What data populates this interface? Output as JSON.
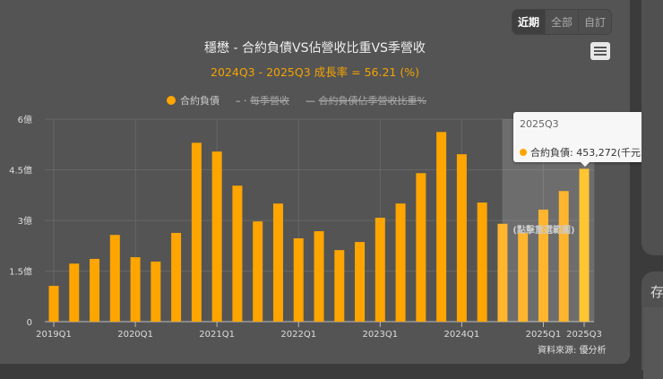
{
  "range_buttons": [
    "近期",
    "全部",
    "自訂"
  ],
  "chart_data": {
    "type": "bar",
    "title": "穩懋 - 合約負債VS佔營收比重VS季營收",
    "subtitle": "2024Q3 - 2025Q3 成長率 = 56.21 (%)",
    "legend": [
      {
        "name": "合約負債",
        "active": true
      },
      {
        "name": "每季營收",
        "active": false
      },
      {
        "name": "合約負債佔季營收比重%",
        "active": false
      }
    ],
    "legend_placement": "top",
    "categories": [
      "2019Q1",
      "2019Q2",
      "2019Q3",
      "2019Q4",
      "2020Q1",
      "2020Q2",
      "2020Q3",
      "2020Q4",
      "2021Q1",
      "2021Q2",
      "2021Q3",
      "2021Q4",
      "2022Q1",
      "2022Q2",
      "2022Q3",
      "2022Q4",
      "2023Q1",
      "2023Q2",
      "2023Q3",
      "2023Q4",
      "2024Q1",
      "2024Q2",
      "2024Q3",
      "2024Q4",
      "2025Q1",
      "2025Q2",
      "2025Q3"
    ],
    "series": [
      {
        "name": "合約負債",
        "unit": "億",
        "values": [
          1.06,
          1.72,
          1.86,
          2.57,
          1.91,
          1.78,
          2.63,
          5.3,
          5.04,
          4.03,
          2.97,
          3.5,
          2.47,
          2.68,
          2.12,
          2.36,
          3.08,
          3.5,
          4.4,
          5.62,
          4.96,
          3.53,
          2.9,
          2.63,
          3.32,
          3.87,
          4.53
        ]
      }
    ],
    "x_tick_labels": [
      "2019Q1",
      "2020Q1",
      "2021Q1",
      "2022Q1",
      "2023Q1",
      "2024Q1",
      "2025Q1",
      "2025Q3"
    ],
    "y_tick_labels": [
      "0",
      "1.5億",
      "3億",
      "4.5億",
      "6億"
    ],
    "y_ticks": [
      0,
      1.5,
      3,
      4.5,
      6
    ],
    "ylim": [
      0,
      6
    ],
    "grid": true,
    "bar_color": "#ffa500",
    "highlight_range": [
      "2024Q3",
      "2025Q3"
    ],
    "highlight_label": "(點擊重選範圍)",
    "tooltip": {
      "header": "2025Q3",
      "label": "合約負債: 453,272(千元)"
    },
    "source": "資料來源: 優分析"
  },
  "side_panel": {
    "label": "存"
  }
}
